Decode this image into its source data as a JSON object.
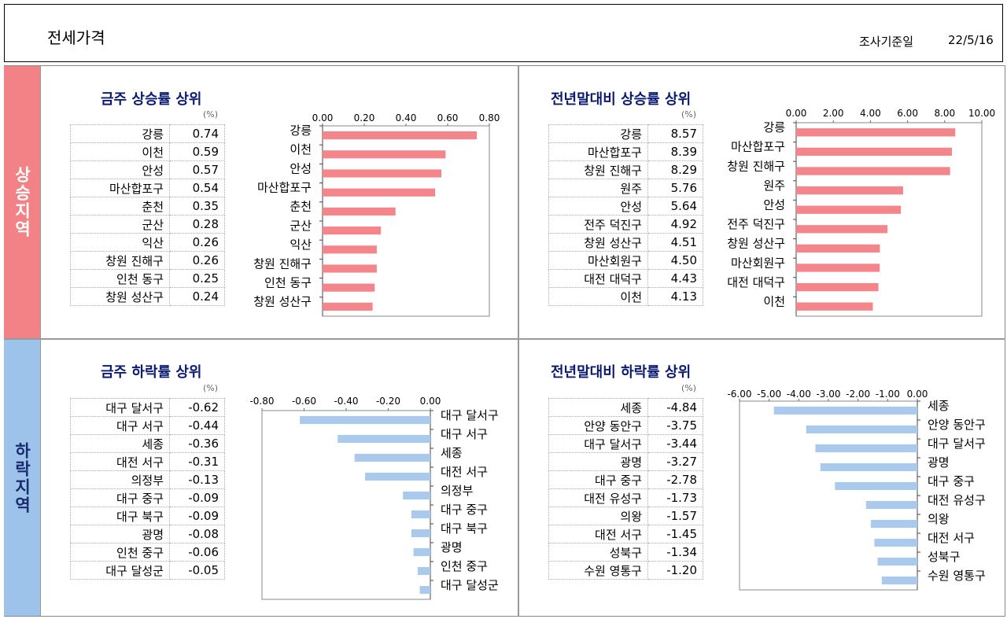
{
  "header": {
    "title": "전세가격",
    "date_label": "조사기준일",
    "date_value": "22/5/16"
  },
  "side": {
    "rise": "상승지역",
    "fall": "하락지역"
  },
  "unit": "(%)",
  "colors": {
    "rise_bar": "#f4868b",
    "fall_bar": "#a9c9ee",
    "title": "#0b1b72"
  },
  "panels": {
    "rise_week": {
      "title": "금주 상승률 상위"
    },
    "rise_year": {
      "title": "전년말대비 상승률 상위"
    },
    "fall_week": {
      "title": "금주 하락률 상위"
    },
    "fall_year": {
      "title": "전년말대비 하락률 상위"
    }
  },
  "tables": {
    "rise_week": [
      {
        "name": "강릉",
        "value": "0.74"
      },
      {
        "name": "이천",
        "value": "0.59"
      },
      {
        "name": "안성",
        "value": "0.57"
      },
      {
        "name": "마산합포구",
        "value": "0.54"
      },
      {
        "name": "춘천",
        "value": "0.35"
      },
      {
        "name": "군산",
        "value": "0.28"
      },
      {
        "name": "익산",
        "value": "0.26"
      },
      {
        "name": "창원 진해구",
        "value": "0.26"
      },
      {
        "name": "인천 동구",
        "value": "0.25"
      },
      {
        "name": "창원 성산구",
        "value": "0.24"
      }
    ],
    "rise_year": [
      {
        "name": "강릉",
        "value": "8.57"
      },
      {
        "name": "마산합포구",
        "value": "8.39"
      },
      {
        "name": "창원 진해구",
        "value": "8.29"
      },
      {
        "name": "원주",
        "value": "5.76"
      },
      {
        "name": "안성",
        "value": "5.64"
      },
      {
        "name": "전주 덕진구",
        "value": "4.92"
      },
      {
        "name": "창원 성산구",
        "value": "4.51"
      },
      {
        "name": "마산회원구",
        "value": "4.50"
      },
      {
        "name": "대전 대덕구",
        "value": "4.43"
      },
      {
        "name": "이천",
        "value": "4.13"
      }
    ],
    "fall_week": [
      {
        "name": "대구 달서구",
        "value": "-0.62"
      },
      {
        "name": "대구 서구",
        "value": "-0.44"
      },
      {
        "name": "세종",
        "value": "-0.36"
      },
      {
        "name": "대전 서구",
        "value": "-0.31"
      },
      {
        "name": "의정부",
        "value": "-0.13"
      },
      {
        "name": "대구 중구",
        "value": "-0.09"
      },
      {
        "name": "대구 북구",
        "value": "-0.09"
      },
      {
        "name": "광명",
        "value": "-0.08"
      },
      {
        "name": "인천 중구",
        "value": "-0.06"
      },
      {
        "name": "대구 달성군",
        "value": "-0.05"
      }
    ],
    "fall_year": [
      {
        "name": "세종",
        "value": "-4.84"
      },
      {
        "name": "안양 동안구",
        "value": "-3.75"
      },
      {
        "name": "대구 달서구",
        "value": "-3.44"
      },
      {
        "name": "광명",
        "value": "-3.27"
      },
      {
        "name": "대구 중구",
        "value": "-2.78"
      },
      {
        "name": "대전 유성구",
        "value": "-1.73"
      },
      {
        "name": "의왕",
        "value": "-1.57"
      },
      {
        "name": "대전 서구",
        "value": "-1.45"
      },
      {
        "name": "성북구",
        "value": "-1.34"
      },
      {
        "name": "수원 영통구",
        "value": "-1.20"
      }
    ]
  },
  "chart_data": [
    {
      "id": "rise_week",
      "type": "bar",
      "orientation": "horizontal",
      "categories": [
        "강릉",
        "이천",
        "안성",
        "마산합포구",
        "춘천",
        "군산",
        "익산",
        "창원 진해구",
        "인천 동구",
        "창원 성산구"
      ],
      "values": [
        0.74,
        0.59,
        0.57,
        0.54,
        0.35,
        0.28,
        0.26,
        0.26,
        0.25,
        0.24
      ],
      "xlim": [
        0,
        0.8
      ],
      "ticks": [
        {
          "v": 0,
          "label": "0.00"
        },
        {
          "v": 0.2,
          "label": "0.20"
        },
        {
          "v": 0.4,
          "label": "0.40"
        },
        {
          "v": 0.6,
          "label": "0.60"
        },
        {
          "v": 0.8,
          "label": "0.80"
        }
      ]
    },
    {
      "id": "rise_year",
      "type": "bar",
      "orientation": "horizontal",
      "categories": [
        "강릉",
        "마산합포구",
        "창원 진해구",
        "원주",
        "안성",
        "전주 덕진구",
        "창원 성산구",
        "마산회원구",
        "대전 대덕구",
        "이천"
      ],
      "values": [
        8.57,
        8.39,
        8.29,
        5.76,
        5.64,
        4.92,
        4.51,
        4.5,
        4.43,
        4.13
      ],
      "xlim": [
        0,
        10
      ],
      "ticks": [
        {
          "v": 0,
          "label": "0.00"
        },
        {
          "v": 2,
          "label": "2.00"
        },
        {
          "v": 4,
          "label": "4.00"
        },
        {
          "v": 6,
          "label": "6.00"
        },
        {
          "v": 8,
          "label": "8.00"
        },
        {
          "v": 10,
          "label": "10.00"
        }
      ]
    },
    {
      "id": "fall_week",
      "type": "bar",
      "orientation": "horizontal",
      "categories": [
        "대구 달서구",
        "대구 서구",
        "세종",
        "대전 서구",
        "의정부",
        "대구 중구",
        "대구 북구",
        "광명",
        "인천 중구",
        "대구 달성군"
      ],
      "values": [
        -0.62,
        -0.44,
        -0.36,
        -0.31,
        -0.13,
        -0.09,
        -0.09,
        -0.08,
        -0.06,
        -0.05
      ],
      "xlim": [
        -0.8,
        0
      ],
      "ticks": [
        {
          "v": -0.8,
          "label": "-0.80"
        },
        {
          "v": -0.6,
          "label": "-0.60"
        },
        {
          "v": -0.4,
          "label": "-0.40"
        },
        {
          "v": -0.2,
          "label": "-0.20"
        },
        {
          "v": 0,
          "label": "0.00"
        }
      ]
    },
    {
      "id": "fall_year",
      "type": "bar",
      "orientation": "horizontal",
      "categories": [
        "세종",
        "안양 동안구",
        "대구 달서구",
        "광명",
        "대구 중구",
        "대전 유성구",
        "의왕",
        "대전 서구",
        "성북구",
        "수원 영통구"
      ],
      "values": [
        -4.84,
        -3.75,
        -3.44,
        -3.27,
        -2.78,
        -1.73,
        -1.57,
        -1.45,
        -1.34,
        -1.2
      ],
      "xlim": [
        -6,
        0
      ],
      "ticks": [
        {
          "v": -6,
          "label": "-6.00"
        },
        {
          "v": -5,
          "label": "-5.00"
        },
        {
          "v": -4,
          "label": "-4.00"
        },
        {
          "v": -3,
          "label": "-3.00"
        },
        {
          "v": -2,
          "label": "-2.00"
        },
        {
          "v": -1,
          "label": "-1.00"
        },
        {
          "v": 0,
          "label": "0.00"
        }
      ]
    }
  ]
}
